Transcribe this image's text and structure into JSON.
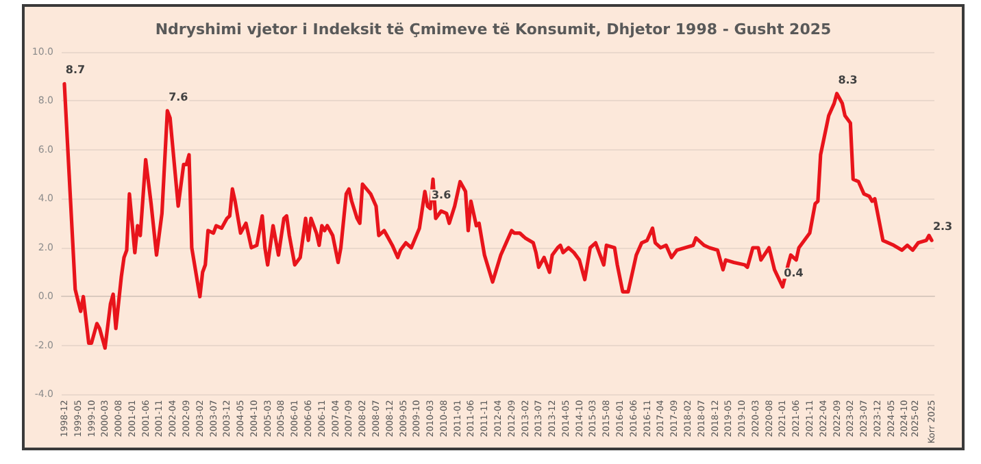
{
  "chart_data": {
    "type": "line",
    "title": "Ndryshimi vjetor i Indeksit të Çmimeve të Konsumit, Dhjetor 1998 - Gusht 2025",
    "x": [
      "1998-12",
      "1999-04",
      "1999-06",
      "1999-07",
      "1999-09",
      "1999-10",
      "1999-12",
      "2000-01",
      "2000-03",
      "2000-05",
      "2000-06",
      "2000-07",
      "2000-09",
      "2000-10",
      "2000-11",
      "2000-12",
      "2001-02",
      "2001-03",
      "2001-04",
      "2001-06",
      "2001-08",
      "2001-10",
      "2001-12",
      "2002-02",
      "2002-03",
      "2002-06",
      "2002-08",
      "2002-09",
      "2002-10",
      "2002-11",
      "2003-02",
      "2003-03",
      "2003-04",
      "2003-05",
      "2003-07",
      "2003-08",
      "2003-10",
      "2003-12",
      "2004-01",
      "2004-02",
      "2004-03",
      "2004-05",
      "2004-07",
      "2004-09",
      "2004-11",
      "2005-01",
      "2005-02",
      "2005-03",
      "2005-05",
      "2005-07",
      "2005-09",
      "2005-10",
      "2005-11",
      "2006-01",
      "2006-03",
      "2006-05",
      "2006-06",
      "2006-07",
      "2006-09",
      "2006-10",
      "2006-11",
      "2006-12",
      "2007-01",
      "2007-03",
      "2007-05",
      "2007-06",
      "2007-08",
      "2007-09",
      "2007-10",
      "2007-12",
      "2008-01",
      "2008-02",
      "2008-05",
      "2008-07",
      "2008-08",
      "2008-10",
      "2008-11",
      "2009-01",
      "2009-03",
      "2009-04",
      "2009-06",
      "2009-08",
      "2009-11",
      "2010-01",
      "2010-02",
      "2010-03",
      "2010-04",
      "2010-05",
      "2010-07",
      "2010-09",
      "2010-10",
      "2010-12",
      "2011-02",
      "2011-04",
      "2011-05",
      "2011-06",
      "2011-08",
      "2011-09",
      "2011-11",
      "2012-02",
      "2012-05",
      "2012-07",
      "2012-09",
      "2012-10",
      "2012-12",
      "2013-02",
      "2013-05",
      "2013-06",
      "2013-07",
      "2013-09",
      "2013-11",
      "2013-12",
      "2014-02",
      "2014-03",
      "2014-04",
      "2014-06",
      "2014-08",
      "2014-10",
      "2014-12",
      "2015-02",
      "2015-04",
      "2015-07",
      "2015-08",
      "2015-11",
      "2015-12",
      "2016-02",
      "2016-04",
      "2016-07",
      "2016-09",
      "2016-11",
      "2017-01",
      "2017-02",
      "2017-04",
      "2017-06",
      "2017-08",
      "2017-10",
      "2018-01",
      "2018-04",
      "2018-05",
      "2018-08",
      "2018-10",
      "2019-01",
      "2019-03",
      "2019-04",
      "2019-07",
      "2019-11",
      "2019-12",
      "2020-02",
      "2020-04",
      "2020-05",
      "2020-08",
      "2020-10",
      "2021-01",
      "2021-03",
      "2021-04",
      "2021-06",
      "2021-07",
      "2021-09",
      "2021-11",
      "2022-01",
      "2022-02",
      "2022-03",
      "2022-06",
      "2022-08",
      "2022-09",
      "2022-11",
      "2022-12",
      "2023-02",
      "2023-03",
      "2023-05",
      "2023-07",
      "2023-09",
      "2023-10",
      "2023-11",
      "2024-02",
      "2024-04",
      "2024-06",
      "2024-09",
      "2024-11",
      "2025-01",
      "2025-03",
      "2025-06",
      "2025-07",
      "2025-08"
    ],
    "series": [
      {
        "color": "#e8141b",
        "values": [
          8.7,
          0.3,
          -0.6,
          0.0,
          -1.9,
          -1.9,
          -1.1,
          -1.3,
          -2.1,
          -0.3,
          0.1,
          -1.3,
          0.8,
          1.6,
          1.9,
          4.2,
          1.8,
          2.9,
          2.5,
          5.6,
          3.8,
          1.7,
          3.4,
          7.6,
          7.3,
          3.7,
          5.4,
          5.4,
          5.8,
          2.0,
          0.0,
          1.0,
          1.3,
          2.7,
          2.6,
          2.9,
          2.8,
          3.2,
          3.3,
          4.4,
          3.9,
          2.6,
          3.0,
          2.0,
          2.1,
          3.3,
          2.0,
          1.3,
          2.9,
          1.7,
          3.2,
          3.3,
          2.5,
          1.3,
          1.6,
          3.2,
          2.3,
          3.2,
          2.6,
          2.1,
          2.9,
          2.7,
          2.9,
          2.5,
          1.4,
          2.0,
          4.2,
          4.4,
          3.9,
          3.2,
          3.0,
          4.6,
          4.2,
          3.7,
          2.5,
          2.7,
          2.5,
          2.1,
          1.6,
          1.9,
          2.2,
          2.0,
          2.8,
          4.3,
          3.7,
          3.6,
          4.8,
          3.2,
          3.5,
          3.4,
          3.0,
          3.7,
          4.7,
          4.3,
          2.7,
          3.9,
          2.9,
          3.0,
          1.7,
          0.6,
          1.7,
          2.2,
          2.7,
          2.6,
          2.6,
          2.4,
          2.2,
          1.8,
          1.2,
          1.6,
          1.0,
          1.7,
          2.0,
          2.1,
          1.8,
          2.0,
          1.8,
          1.5,
          0.7,
          2.0,
          2.2,
          1.3,
          2.1,
          2.0,
          1.3,
          0.2,
          0.2,
          1.7,
          2.2,
          2.3,
          2.8,
          2.2,
          2.0,
          2.1,
          1.6,
          1.9,
          2.0,
          2.1,
          2.4,
          2.1,
          2.0,
          1.9,
          1.1,
          1.5,
          1.4,
          1.3,
          1.2,
          2.0,
          2.0,
          1.5,
          2.0,
          1.1,
          0.4,
          1.3,
          1.7,
          1.5,
          2.0,
          2.3,
          2.6,
          3.8,
          3.9,
          5.8,
          7.4,
          7.9,
          8.3,
          7.9,
          7.4,
          7.1,
          4.8,
          4.7,
          4.2,
          4.1,
          3.9,
          4.0,
          2.3,
          2.2,
          2.1,
          1.9,
          2.1,
          1.9,
          2.2,
          2.3,
          2.5,
          2.3
        ]
      }
    ],
    "xlim": [
      "1998-11",
      "2025-09"
    ],
    "xticks": [
      "1998-12",
      "1999-05",
      "1999-10",
      "2000-03",
      "2000-08",
      "2001-01",
      "2001-06",
      "2001-11",
      "2002-04",
      "2002-09",
      "2003-02",
      "2003-07",
      "2003-12",
      "2004-05",
      "2004-10",
      "2005-03",
      "2005-08",
      "2006-01",
      "2006-06",
      "2006-11",
      "2007-04",
      "2007-09",
      "2008-02",
      "2008-07",
      "2008-12",
      "2009-05",
      "2009-10",
      "2010-03",
      "2010-08",
      "2011-01",
      "2011-06",
      "2011-11",
      "2012-04",
      "2012-09",
      "2013-02",
      "2013-07",
      "2013-12",
      "2014-05",
      "2014-10",
      "2015-03",
      "2015-08",
      "2016-01",
      "2016-06",
      "2016-11",
      "2017-04",
      "2017-09",
      "2018-02",
      "2018-07",
      "2018-12",
      "2019-05",
      "2019-10",
      "2020-03",
      "2020-08",
      "2021-01",
      "2021-06",
      "2021-11",
      "2022-04",
      "2022-09",
      "2023-02",
      "2023-07",
      "2023-12",
      "2024-05",
      "2024-10",
      "2025-02",
      {
        "value": "2025-08",
        "label": "Korr 2025"
      }
    ],
    "ylim": [
      -4,
      10
    ],
    "yticks": [
      {
        "value": -4,
        "label": "-4.0"
      },
      {
        "value": -2,
        "label": "-2.0"
      },
      {
        "value": 0,
        "label": "0.0"
      },
      {
        "value": 2,
        "label": "2.0"
      },
      {
        "value": 4,
        "label": "4.0"
      },
      {
        "value": 6,
        "label": "6.0"
      },
      {
        "value": 8,
        "label": "8.0"
      },
      {
        "value": 10,
        "label": "10.0"
      }
    ],
    "annotations": [
      {
        "text": "8.7",
        "x": "1998-12",
        "y": 8.7
      },
      {
        "text": "7.6",
        "x": "2002-02",
        "y": 7.6
      },
      {
        "text": "3.6",
        "x": "2010-03",
        "y": 3.6
      },
      {
        "text": "0.4",
        "x": "2021-01",
        "y": 0.4
      },
      {
        "text": "8.3",
        "x": "2022-09",
        "y": 8.3
      },
      {
        "text": "2.3",
        "x": "2025-08",
        "y": 2.3
      }
    ],
    "grid": "y",
    "marker": "none",
    "line_style": "solid"
  }
}
